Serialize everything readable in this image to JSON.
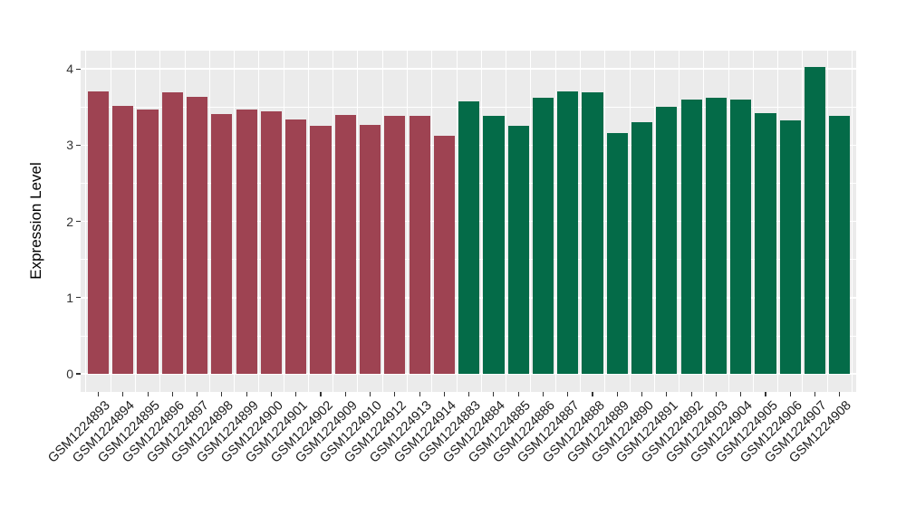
{
  "chart_data": {
    "type": "bar",
    "title": "",
    "xlabel": "",
    "ylabel": "Expression Level",
    "ylim": [
      0,
      4.26
    ],
    "yticks": [
      "0",
      "1",
      "2",
      "3",
      "4"
    ],
    "ytick_values": [
      0,
      1,
      2,
      3,
      4
    ],
    "minor_gridlines": [
      0.5,
      1.5,
      2.5,
      3.5
    ],
    "grid": "on",
    "legend_position": "none",
    "panel_bg_color": "#EBEBEB",
    "gridline_color": "#FFFFFF",
    "categories": [
      "GSM1224893",
      "GSM1224894",
      "GSM1224895",
      "GSM1224896",
      "GSM1224897",
      "GSM1224898",
      "GSM1224899",
      "GSM1224900",
      "GSM1224901",
      "GSM1224902",
      "GSM1224909",
      "GSM1224910",
      "GSM1224912",
      "GSM1224913",
      "GSM1224914",
      "GSM1224883",
      "GSM1224884",
      "GSM1224885",
      "GSM1224886",
      "GSM1224887",
      "GSM1224888",
      "GSM1224889",
      "GSM1224890",
      "GSM1224891",
      "GSM1224892",
      "GSM1224903",
      "GSM1224904",
      "GSM1224905",
      "GSM1224906",
      "GSM1224907",
      "GSM1224908"
    ],
    "values": [
      3.71,
      3.52,
      3.47,
      3.69,
      3.64,
      3.41,
      3.47,
      3.45,
      3.34,
      3.26,
      3.4,
      3.27,
      3.39,
      3.38,
      3.12,
      3.57,
      3.39,
      3.25,
      3.62,
      3.7,
      3.69,
      3.16,
      3.3,
      3.5,
      3.6,
      3.62,
      3.6,
      3.42,
      3.33,
      4.03,
      3.38
    ],
    "bar_group": [
      0,
      0,
      0,
      0,
      0,
      0,
      0,
      0,
      0,
      0,
      0,
      0,
      0,
      0,
      0,
      1,
      1,
      1,
      1,
      1,
      1,
      1,
      1,
      1,
      1,
      1,
      1,
      1,
      1,
      1,
      1
    ],
    "group_colors": [
      "#9E4352",
      "#046B48"
    ]
  }
}
